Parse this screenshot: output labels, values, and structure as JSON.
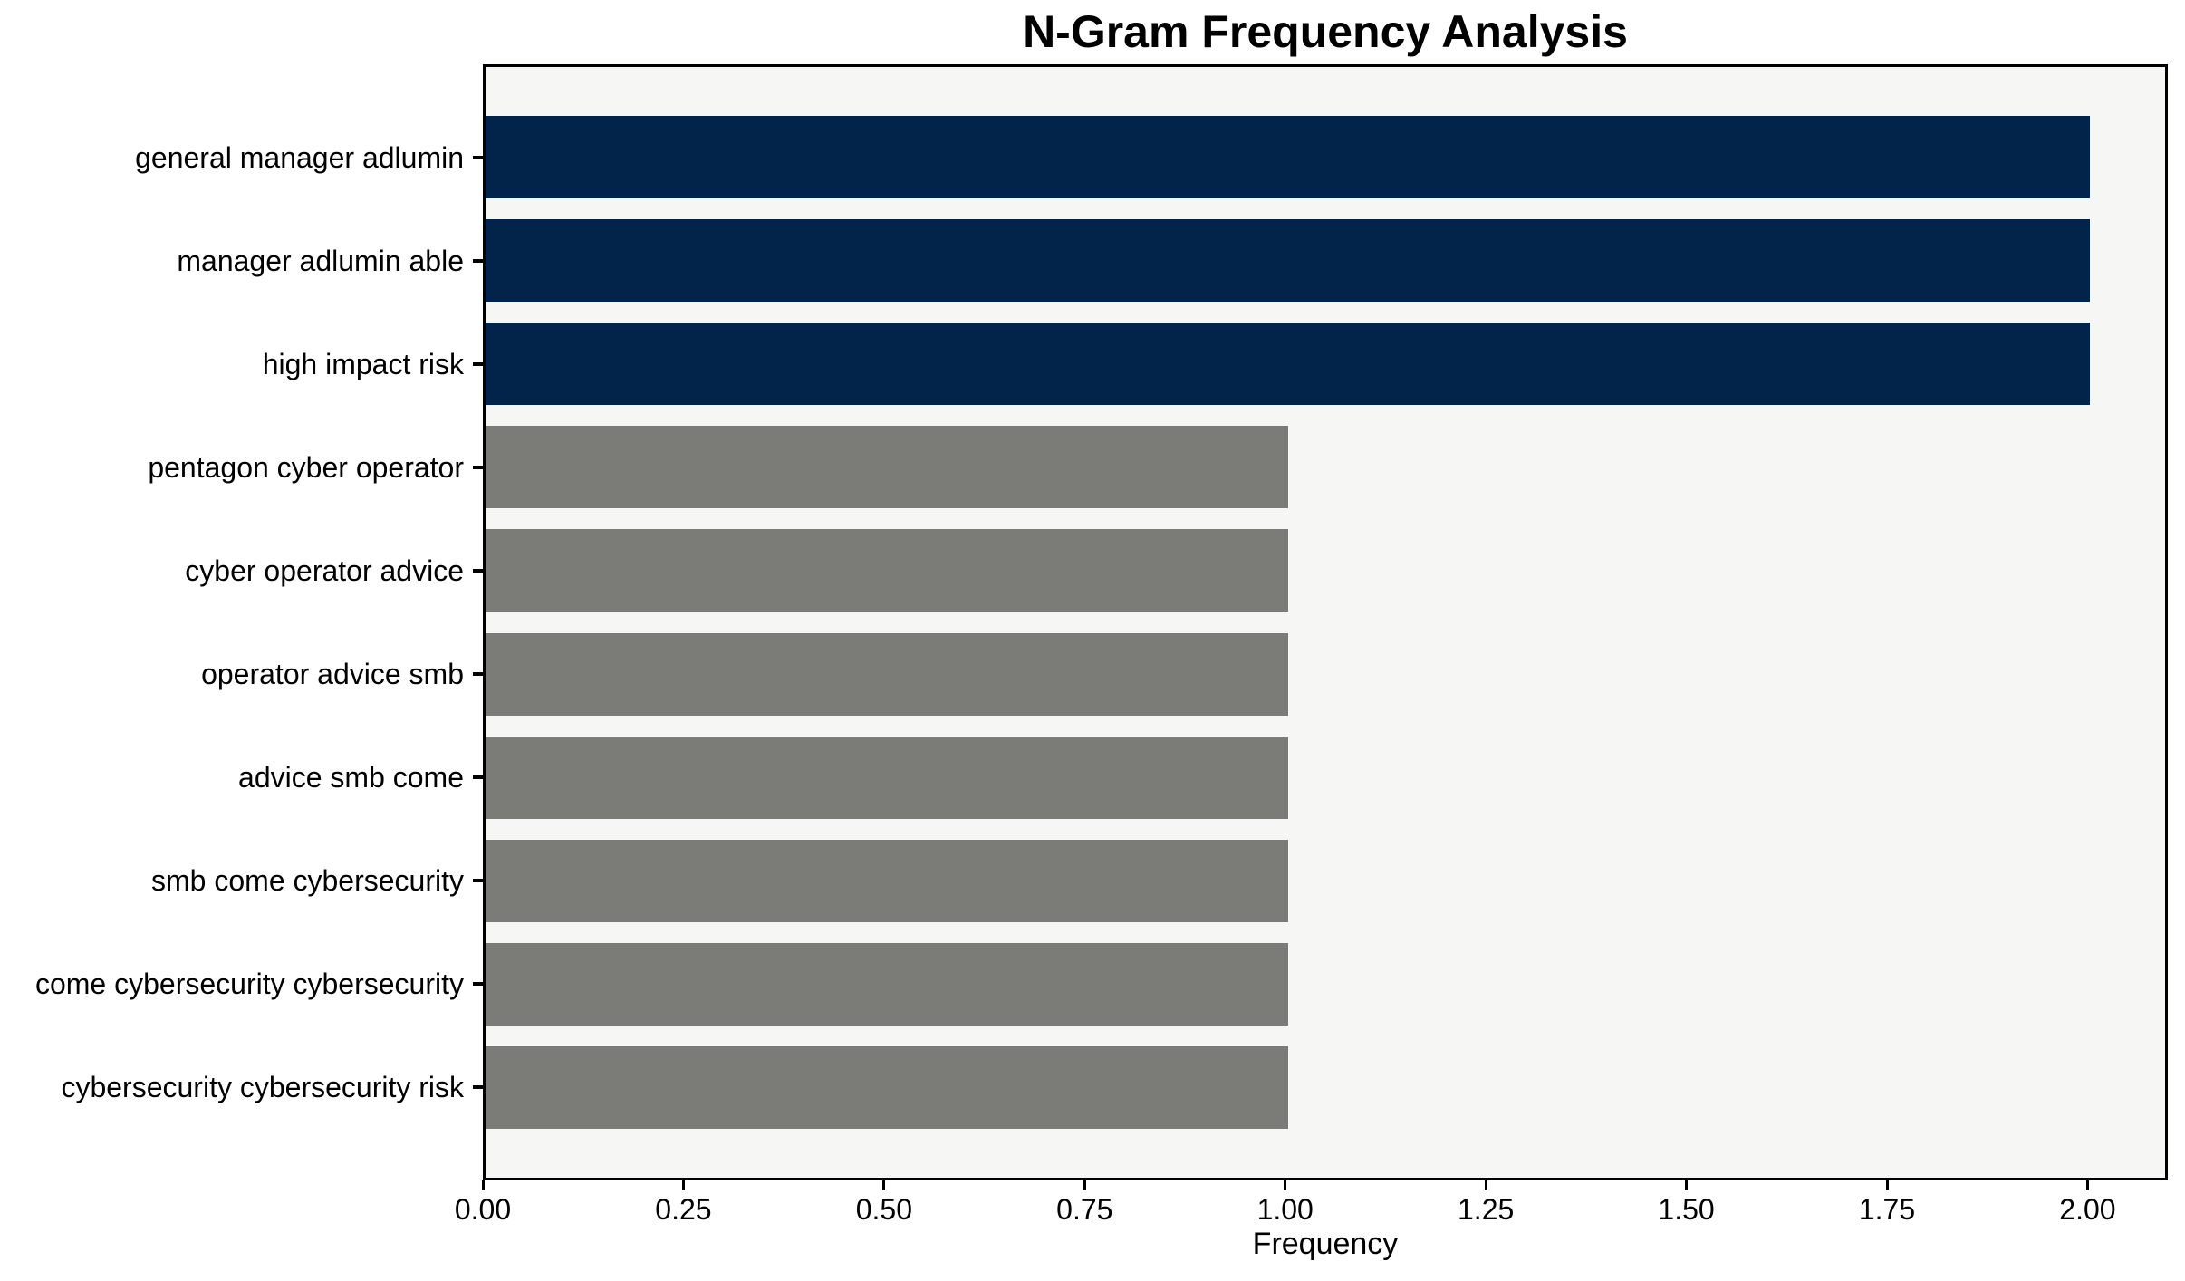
{
  "chart_data": {
    "type": "bar",
    "orientation": "horizontal",
    "title": "N-Gram Frequency Analysis",
    "xlabel": "Frequency",
    "ylabel": "",
    "categories": [
      "general manager adlumin",
      "manager adlumin able",
      "high impact risk",
      "pentagon cyber operator",
      "cyber operator advice",
      "operator advice smb",
      "advice smb come",
      "smb come cybersecurity",
      "come cybersecurity cybersecurity",
      "cybersecurity cybersecurity risk"
    ],
    "values": [
      2,
      2,
      2,
      1,
      1,
      1,
      1,
      1,
      1,
      1
    ],
    "bar_colors": [
      "#02234a",
      "#02234a",
      "#02234a",
      "#7b7b77",
      "#7b7b77",
      "#7b7b77",
      "#7b7b77",
      "#7b7b77",
      "#7b7b77",
      "#7b7b77"
    ],
    "colors": {
      "highlight": "#02234a",
      "default": "#7b7b77",
      "plot_background": "#f6f6f4",
      "figure_background": "#ffffff",
      "axis": "#000000"
    },
    "xlim": [
      0,
      2.1
    ],
    "xticks": [
      0,
      0.25,
      0.5,
      0.75,
      1.0,
      1.25,
      1.5,
      1.75,
      2.0
    ],
    "xtick_labels": [
      "0.00",
      "0.25",
      "0.50",
      "0.75",
      "1.00",
      "1.25",
      "1.50",
      "1.75",
      "2.00"
    ],
    "grid": false,
    "legend": false
  }
}
